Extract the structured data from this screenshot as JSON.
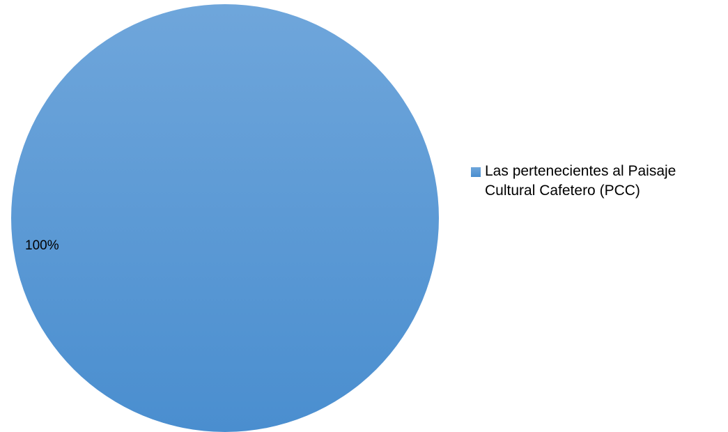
{
  "chart_data": {
    "type": "pie",
    "title": "",
    "slices": [
      {
        "label": "Las pertenecientes al Paisaje Cultural Cafetero (PCC)",
        "value": 100,
        "percent_label": "100%",
        "color_top": "#6fa6db",
        "color_bottom": "#4a8ecf"
      }
    ],
    "legend": {
      "placement": "right",
      "entries": [
        "Las pertenecientes al Paisaje Cultural Cafetero (PCC)"
      ]
    }
  }
}
